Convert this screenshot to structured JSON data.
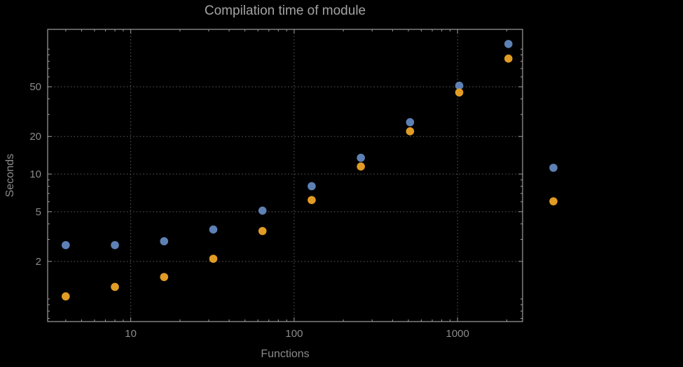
{
  "chart_data": {
    "type": "scatter",
    "title": "Compilation time of module",
    "xlabel": "Functions",
    "ylabel": "Seconds",
    "xscale": "log",
    "yscale": "log",
    "xlim": [
      3.1,
      2500
    ],
    "ylim": [
      0.66,
      144
    ],
    "x_ticks": [
      10,
      100,
      1000
    ],
    "y_ticks": [
      2,
      5,
      10,
      20,
      50
    ],
    "grid_x": [
      10,
      100,
      1000
    ],
    "grid_y": [
      2,
      5,
      10,
      20,
      50
    ],
    "grid_style": "dotted",
    "background_color": "#000000",
    "frame_color": "#9e9e9e",
    "grid_color": "#5f5f5f",
    "text_color": "#8b8b8b",
    "series": [
      {
        "color": "#5e81b5",
        "points": [
          [
            4,
            2.7
          ],
          [
            8,
            2.7
          ],
          [
            16,
            2.9
          ],
          [
            32,
            3.6
          ],
          [
            64,
            5.1
          ],
          [
            128,
            8.0
          ],
          [
            256,
            13.5
          ],
          [
            512,
            26
          ],
          [
            1024,
            51
          ],
          [
            2048,
            110
          ]
        ]
      },
      {
        "color": "#e19c24",
        "points": [
          [
            4,
            1.05
          ],
          [
            8,
            1.25
          ],
          [
            16,
            1.5
          ],
          [
            32,
            2.1
          ],
          [
            64,
            3.5
          ],
          [
            128,
            6.2
          ],
          [
            256,
            11.5
          ],
          [
            512,
            22
          ],
          [
            1024,
            45
          ],
          [
            2048,
            84
          ]
        ]
      }
    ],
    "legend": {
      "position": "right-outside",
      "entries": [
        {
          "marker_color": "#5e81b5",
          "label": ""
        },
        {
          "marker_color": "#e19c24",
          "label": ""
        }
      ]
    }
  }
}
